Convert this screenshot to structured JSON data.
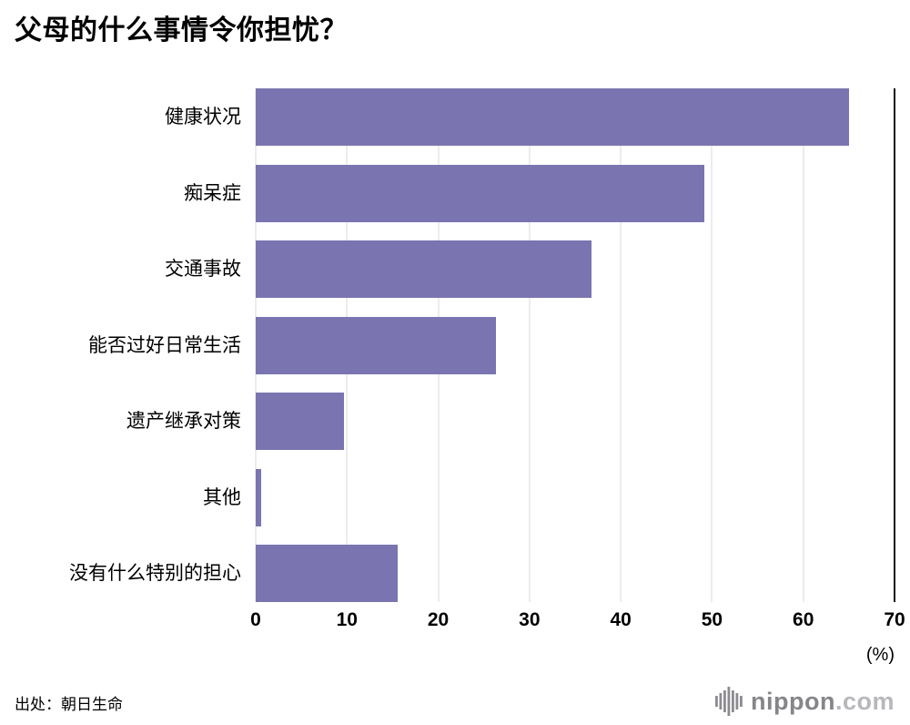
{
  "title": "父母的什么事情令你担忧？",
  "source": "出处：朝日生命",
  "logo": {
    "name": "nippon",
    "suffix": ".com"
  },
  "chart_data": {
    "type": "bar",
    "orientation": "horizontal",
    "title": "父母的什么事情令你担忧？",
    "categories": [
      "健康状况",
      "痴呆症",
      "交通事故",
      "能否过好日常生活",
      "遗产继承对策",
      "其他",
      "没有什么特别的担心"
    ],
    "values": [
      65.0,
      49.2,
      36.8,
      26.3,
      9.7,
      0.6,
      15.6
    ],
    "unit_label": "(%)",
    "xlim": [
      0,
      70
    ],
    "xticks": [
      0,
      10,
      20,
      30,
      40,
      50,
      60,
      70
    ],
    "bar_color": "#7a74b0",
    "gridline_color": "#d9d9d9",
    "end_line_color": "#111111",
    "grid": true,
    "legend": "none"
  }
}
